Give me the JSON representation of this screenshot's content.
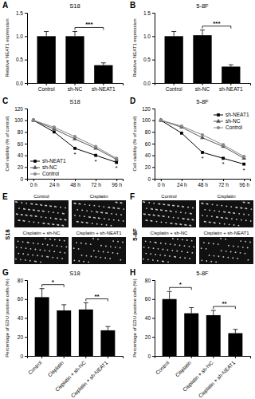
{
  "chart_data": [
    {
      "panel": "A",
      "type": "bar",
      "title": "S18",
      "ylabel": "Relative NEAT1 expression",
      "categories": [
        "Control",
        "sh-NC",
        "sh-NEAT1"
      ],
      "values": [
        1.0,
        1.0,
        0.38
      ],
      "errors": [
        0.1,
        0.1,
        0.05
      ],
      "color": "#000000",
      "ylim": [
        0,
        1.5
      ],
      "yticks": [
        {
          "value": 0,
          "label": "0.0"
        },
        {
          "value": 0.5,
          "label": "0.5"
        },
        {
          "value": 1,
          "label": "1.0"
        },
        {
          "value": 1.5,
          "label": "1.5"
        }
      ],
      "significance": [
        {
          "pair": [
            "sh-NC",
            "sh-NEAT1"
          ],
          "label": "***"
        }
      ]
    },
    {
      "panel": "B",
      "type": "bar",
      "title": "5-8F",
      "ylabel": "Relative NEAT1 expression",
      "categories": [
        "Control",
        "sh-NC",
        "sh-NEAT1"
      ],
      "values": [
        1.0,
        1.02,
        0.35
      ],
      "errors": [
        0.1,
        0.11,
        0.04
      ],
      "color": "#000000",
      "ylim": [
        0,
        1.5
      ],
      "yticks": [
        {
          "value": 0,
          "label": "0.0"
        },
        {
          "value": 0.5,
          "label": "0.5"
        },
        {
          "value": 1,
          "label": "1.0"
        },
        {
          "value": 1.5,
          "label": "1.5"
        }
      ],
      "significance": [
        {
          "pair": [
            "sh-NC",
            "sh-NEAT1"
          ],
          "label": "***"
        }
      ]
    },
    {
      "panel": "C",
      "type": "line",
      "title": "S18",
      "ylabel": "Cell viability (% of control)",
      "categories": [
        "0 h",
        "24 h",
        "48 h",
        "72 h",
        "96 h"
      ],
      "series": [
        {
          "name": "sh-NEAT1",
          "color": "#000000",
          "marker": "square",
          "values": [
            100,
            80,
            52,
            40,
            28
          ]
        },
        {
          "name": "sh-NC",
          "color": "#555555",
          "marker": "triangle",
          "values": [
            100,
            85,
            68,
            52,
            33
          ]
        },
        {
          "name": "Control",
          "color": "#888888",
          "marker": "circle",
          "values": [
            100,
            88,
            72,
            55,
            35
          ]
        }
      ],
      "ylim": [
        0,
        120
      ],
      "yticks": [
        0,
        20,
        40,
        60,
        80,
        100,
        120
      ],
      "legend": "lower left",
      "annotations": [
        {
          "label": "*",
          "x": "48 h",
          "series": "sh-NEAT1"
        },
        {
          "label": "*",
          "x": "72 h",
          "series": "sh-NEAT1"
        },
        {
          "label": "*",
          "x": "96 h",
          "series": "sh-NEAT1"
        }
      ]
    },
    {
      "panel": "D",
      "type": "line",
      "title": "5-8F",
      "ylabel": "Cell viability (% of control)",
      "categories": [
        "0 h",
        "24 h",
        "48 h",
        "72 h",
        "96 h"
      ],
      "series": [
        {
          "name": "sh-NEAT1",
          "color": "#000000",
          "marker": "square",
          "values": [
            100,
            78,
            45,
            35,
            25
          ]
        },
        {
          "name": "sh-NC",
          "color": "#555555",
          "marker": "triangle",
          "values": [
            100,
            88,
            70,
            55,
            35
          ]
        },
        {
          "name": "Control",
          "color": "#888888",
          "marker": "circle",
          "values": [
            100,
            90,
            75,
            58,
            38
          ]
        }
      ],
      "ylim": [
        0,
        120
      ],
      "yticks": [
        0,
        20,
        40,
        60,
        80,
        100,
        120
      ],
      "legend": "upper right",
      "annotations": [
        {
          "label": "*",
          "x": "48 h",
          "series": "sh-NEAT1"
        },
        {
          "label": "*",
          "x": "72 h",
          "series": "sh-NEAT1"
        },
        {
          "label": "*",
          "x": "96 h",
          "series": "sh-NEAT1"
        }
      ]
    },
    {
      "panel": "E",
      "type": "image",
      "title": "S18",
      "categories": [
        "Control",
        "Cisplatin",
        "Cisplatin + sh-NC",
        "Cisplatin + sh-NEAT1"
      ]
    },
    {
      "panel": "F",
      "type": "image",
      "title": "5-8F",
      "categories": [
        "Control",
        "Cisplatin",
        "Cisplatin + sh-NC",
        "Cisplatin + sh-NEAT1"
      ]
    },
    {
      "panel": "G",
      "type": "bar",
      "title": "S18",
      "ylabel": "Percentage of EDU positive cells (%)",
      "categories": [
        "Control",
        "Cisplatin",
        "Cisplatin + sh-NC",
        "Cisplatin + sh-NEAT1"
      ],
      "values": [
        62,
        48,
        49,
        27
      ],
      "errors": [
        9,
        6,
        7,
        4
      ],
      "color": "#000000",
      "ylim": [
        0,
        80
      ],
      "yticks": [
        0,
        20,
        40,
        60,
        80
      ],
      "significance": [
        {
          "pair": [
            "Control",
            "Cisplatin"
          ],
          "label": "*"
        },
        {
          "pair": [
            "Cisplatin + sh-NC",
            "Cisplatin + sh-NEAT1"
          ],
          "label": "**"
        }
      ]
    },
    {
      "panel": "H",
      "type": "bar",
      "title": "5-8F",
      "ylabel": "Percentage of EDU positive cells (%)",
      "categories": [
        "Control",
        "Cisplatin",
        "Cisplatin + sh-NC",
        "Cisplatin + sh-NEAT1"
      ],
      "values": [
        60,
        45,
        43,
        24
      ],
      "errors": [
        8,
        6,
        5,
        4
      ],
      "color": "#000000",
      "ylim": [
        0,
        80
      ],
      "yticks": [
        0,
        20,
        40,
        60,
        80
      ],
      "significance": [
        {
          "pair": [
            "Control",
            "Cisplatin"
          ],
          "label": "*"
        },
        {
          "pair": [
            "Cisplatin + sh-NC",
            "Cisplatin + sh-NEAT1"
          ],
          "label": "**"
        }
      ]
    }
  ]
}
